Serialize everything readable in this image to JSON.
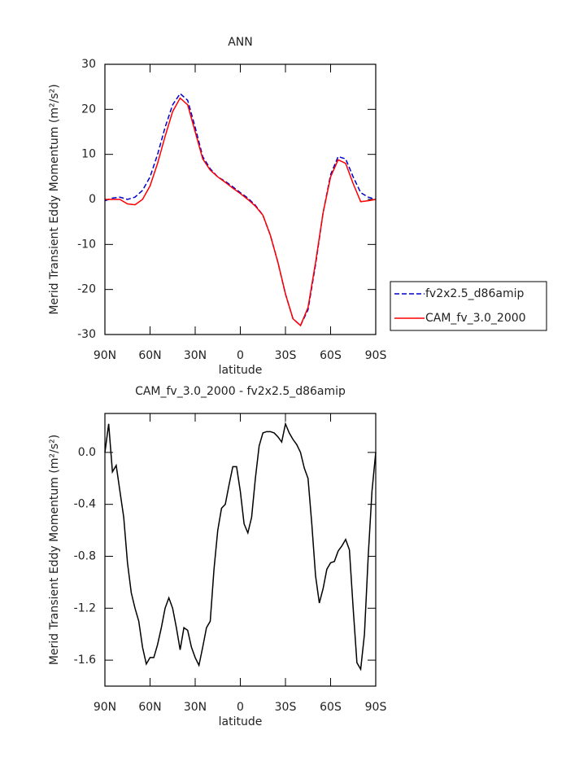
{
  "chart_data": [
    {
      "type": "line",
      "title": "ANN",
      "xlabel": "latitude",
      "ylabel": "Merid Transient Eddy Momentum (m²/s²)",
      "x": [
        90,
        85,
        80,
        75,
        70,
        65,
        60,
        55,
        50,
        45,
        40,
        35,
        30,
        25,
        20,
        15,
        10,
        5,
        0,
        -5,
        -10,
        -15,
        -20,
        -25,
        -30,
        -35,
        -40,
        -45,
        -50,
        -55,
        -60,
        -65,
        -70,
        -75,
        -80,
        -85,
        -90
      ],
      "xlim": [
        90,
        -90
      ],
      "xticks": [
        {
          "value": 90,
          "label": "90N"
        },
        {
          "value": 60,
          "label": "60N"
        },
        {
          "value": 30,
          "label": "30N"
        },
        0,
        {
          "value": -30,
          "label": "30S"
        },
        {
          "value": -60,
          "label": "60S"
        },
        {
          "value": -90,
          "label": "90S"
        }
      ],
      "ylim": [
        -30,
        30
      ],
      "yticks": [
        -30,
        -20,
        -10,
        0,
        10,
        20,
        30
      ],
      "legend": "right",
      "series": [
        {
          "name": "fv2x2.5_d86amip",
          "color": "#0000cc",
          "linestyle": "dashed",
          "values": [
            -0.3,
            0.3,
            0.5,
            0,
            0.5,
            2,
            5,
            10,
            16,
            21,
            23.5,
            22,
            16,
            9.5,
            6.8,
            5,
            4,
            2.8,
            1.5,
            0.3,
            -1.3,
            -3.5,
            -8,
            -14,
            -21,
            -26.5,
            -28,
            -24.5,
            -14.5,
            -3,
            5.5,
            9.5,
            9,
            5,
            1.5,
            0.5,
            0
          ]
        },
        {
          "name": "CAM_fv_3.0_2000",
          "color": "#ff0000",
          "linestyle": "solid",
          "values": [
            0,
            0,
            0,
            -1,
            -1.2,
            0,
            3,
            8,
            14,
            19.5,
            22.5,
            21,
            15,
            9,
            6.5,
            5,
            3.8,
            2.5,
            1.3,
            0,
            -1.5,
            -3.5,
            -8,
            -14,
            -21,
            -26.5,
            -28,
            -24,
            -14,
            -3,
            5,
            8.8,
            8,
            3.5,
            -0.5,
            -0.3,
            0
          ]
        }
      ]
    },
    {
      "type": "line",
      "title": "CAM_fv_3.0_2000 - fv2x2.5_d86amip",
      "xlabel": "latitude",
      "ylabel": "Merid Transient Eddy Momentum (m²/s²)",
      "x": [
        90,
        87.5,
        85,
        82.5,
        80,
        77.5,
        75,
        72.5,
        70,
        67.5,
        65,
        62.5,
        60,
        57.5,
        55,
        52.5,
        50,
        47.5,
        45,
        42.5,
        40,
        37.5,
        35,
        32.5,
        30,
        27.5,
        25,
        22.5,
        20,
        17.5,
        15,
        12.5,
        10,
        7.5,
        5,
        2.5,
        0,
        -2.5,
        -5,
        -7.5,
        -10,
        -12.5,
        -15,
        -17.5,
        -20,
        -22.5,
        -25,
        -27.5,
        -30,
        -32.5,
        -35,
        -37.5,
        -40,
        -42.5,
        -45,
        -47.5,
        -50,
        -52.5,
        -55,
        -57.5,
        -60,
        -62.5,
        -65,
        -67.5,
        -70,
        -72.5,
        -75,
        -77.5,
        -80,
        -82.5,
        -85,
        -87.5,
        -90
      ],
      "xlim": [
        90,
        -90
      ],
      "xticks": [
        {
          "value": 90,
          "label": "90N"
        },
        {
          "value": 60,
          "label": "60N"
        },
        {
          "value": 30,
          "label": "30N"
        },
        0,
        {
          "value": -30,
          "label": "30S"
        },
        {
          "value": -60,
          "label": "60S"
        },
        {
          "value": -90,
          "label": "90S"
        }
      ],
      "ylim": [
        -1.8,
        0.3
      ],
      "yticks": [
        -1.6,
        -1.2,
        -0.8,
        -0.4,
        {
          "value": 0,
          "label": "0.0"
        }
      ],
      "series": [
        {
          "color": "#000000",
          "linestyle": "solid",
          "values": [
            0.0,
            0.22,
            -0.15,
            -0.1,
            -0.3,
            -0.5,
            -0.85,
            -1.08,
            -1.2,
            -1.3,
            -1.5,
            -1.63,
            -1.58,
            -1.58,
            -1.48,
            -1.35,
            -1.2,
            -1.12,
            -1.2,
            -1.35,
            -1.52,
            -1.35,
            -1.37,
            -1.5,
            -1.58,
            -1.64,
            -1.5,
            -1.35,
            -1.3,
            -0.9,
            -0.6,
            -0.43,
            -0.4,
            -0.25,
            -0.11,
            -0.11,
            -0.3,
            -0.55,
            -0.62,
            -0.5,
            -0.2,
            0.05,
            0.15,
            0.16,
            0.16,
            0.15,
            0.12,
            0.08,
            0.22,
            0.15,
            0.1,
            0.06,
            0.0,
            -0.12,
            -0.2,
            -0.55,
            -0.95,
            -1.16,
            -1.05,
            -0.9,
            -0.85,
            -0.84,
            -0.76,
            -0.72,
            -0.67,
            -0.75,
            -1.2,
            -1.62,
            -1.67,
            -1.4,
            -0.8,
            -0.3,
            0.0
          ]
        }
      ]
    }
  ]
}
